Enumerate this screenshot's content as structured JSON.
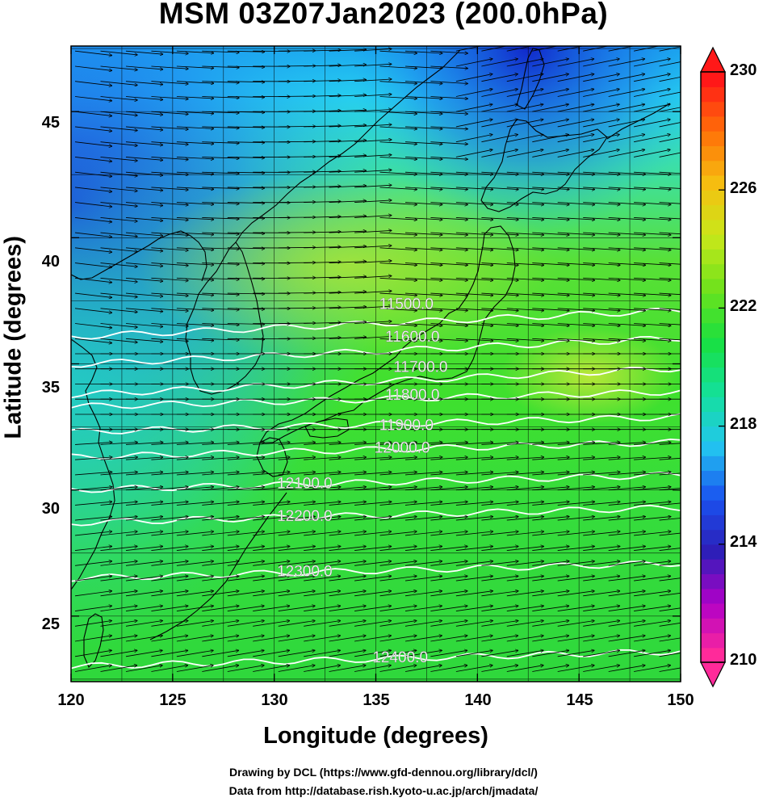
{
  "title": "MSM 03Z07Jan2023 (200.0hPa)",
  "axes": {
    "xlabel": "Longitude (degrees)",
    "ylabel": "Latitude  (degrees)",
    "x_ticks": [
      "120",
      "125",
      "130",
      "135",
      "140",
      "145",
      "150"
    ],
    "y_ticks": [
      "25",
      "30",
      "35",
      "40",
      "45"
    ],
    "x_range": [
      120,
      150
    ],
    "y_range": [
      22.4,
      47.6
    ]
  },
  "colorbar": {
    "ticks": [
      "230",
      "226",
      "222",
      "218",
      "214",
      "210"
    ],
    "range": [
      210,
      230
    ],
    "colors": [
      "#ff2a9a",
      "#b000c8",
      "#2b1fb8",
      "#1a52f0",
      "#22c6f0",
      "#14e09a",
      "#18e040",
      "#6fe21c",
      "#c8e81a",
      "#f6bf10",
      "#ff7008",
      "#ff1818"
    ]
  },
  "contours": {
    "labels": [
      "11500.0",
      "11600.0",
      "11700.0",
      "11800.0",
      "11900.0",
      "12000.0",
      "12100.0",
      "12200.0",
      "12300.0",
      "12400.0"
    ],
    "levels": [
      11500,
      11600,
      11700,
      11800,
      11900,
      12000,
      12100,
      12200,
      12300,
      12400
    ],
    "color": "#ffffff"
  },
  "vectors": {
    "color": "#000000",
    "direction": "eastward"
  },
  "credits": [
    "Drawing by DCL (https://www.gfd-dennou.org/library/dcl/)",
    "Data from http://database.rish.kyoto-u.ac.jp/arch/jmadata/"
  ]
}
